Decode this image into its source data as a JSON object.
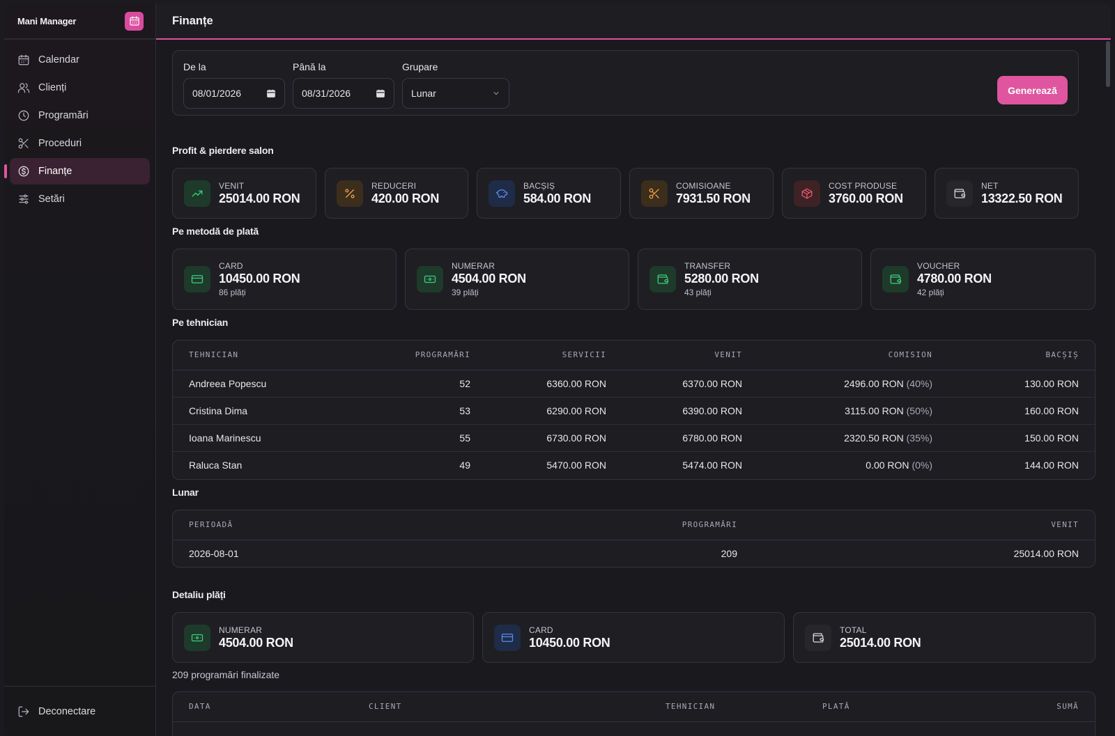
{
  "app": {
    "name": "Mani Manager",
    "page_title": "Finanțe"
  },
  "sidebar": {
    "items": [
      {
        "label": "Calendar",
        "icon": "calendar-icon"
      },
      {
        "label": "Clienți",
        "icon": "users-icon"
      },
      {
        "label": "Programări",
        "icon": "clock-icon"
      },
      {
        "label": "Proceduri",
        "icon": "scissors-icon"
      },
      {
        "label": "Finanțe",
        "icon": "dollar-icon",
        "active": true
      },
      {
        "label": "Setări",
        "icon": "sliders-icon"
      }
    ],
    "logout_label": "Deconectare"
  },
  "filters": {
    "from_label": "De la",
    "from_value": "08/01/2026",
    "to_label": "Până la",
    "to_value": "08/31/2026",
    "group_label": "Grupare",
    "group_value": "Lunar",
    "generate_label": "Generează"
  },
  "pnl": {
    "title": "Profit & pierdere salon",
    "cards": [
      {
        "label": "VENIT",
        "value": "25014.00 RON",
        "icon": "trending-up-icon",
        "color": "green"
      },
      {
        "label": "REDUCERI",
        "value": "420.00 RON",
        "icon": "percent-icon",
        "color": "orange"
      },
      {
        "label": "BACȘIȘ",
        "value": "584.00 RON",
        "icon": "piggy-bank-icon",
        "color": "blue"
      },
      {
        "label": "COMISIOANE",
        "value": "7931.50 RON",
        "icon": "scissors-icon",
        "color": "orange"
      },
      {
        "label": "COST PRODUSE",
        "value": "3760.00 RON",
        "icon": "package-icon",
        "color": "red"
      },
      {
        "label": "NET",
        "value": "13322.50 RON",
        "icon": "wallet-icon",
        "color": "gray"
      }
    ]
  },
  "payment_methods": {
    "title": "Pe metodă de plată",
    "cards": [
      {
        "label": "CARD",
        "value": "10450.00 RON",
        "sub": "86 plăți",
        "icon": "credit-card-icon"
      },
      {
        "label": "NUMERAR",
        "value": "4504.00 RON",
        "sub": "39 plăți",
        "icon": "banknote-icon"
      },
      {
        "label": "TRANSFER",
        "value": "5280.00 RON",
        "sub": "43 plăți",
        "icon": "wallet-icon"
      },
      {
        "label": "VOUCHER",
        "value": "4780.00 RON",
        "sub": "42 plăți",
        "icon": "wallet-icon"
      }
    ]
  },
  "technicians": {
    "title": "Pe tehnician",
    "headers": [
      "TEHNICIAN",
      "PROGRAMĂRI",
      "SERVICII",
      "VENIT",
      "COMISION",
      "BACȘIȘ"
    ],
    "rows": [
      {
        "name": "Andreea Popescu",
        "appointments": "52",
        "services": "6360.00 RON",
        "revenue": "6370.00 RON",
        "commission": "2496.00 RON",
        "commission_pct": "(40%)",
        "tips": "130.00 RON"
      },
      {
        "name": "Cristina Dima",
        "appointments": "53",
        "services": "6290.00 RON",
        "revenue": "6390.00 RON",
        "commission": "3115.00 RON",
        "commission_pct": "(50%)",
        "tips": "160.00 RON"
      },
      {
        "name": "Ioana Marinescu",
        "appointments": "55",
        "services": "6730.00 RON",
        "revenue": "6780.00 RON",
        "commission": "2320.50 RON",
        "commission_pct": "(35%)",
        "tips": "150.00 RON"
      },
      {
        "name": "Raluca Stan",
        "appointments": "49",
        "services": "5470.00 RON",
        "revenue": "5474.00 RON",
        "commission": "0.00 RON",
        "commission_pct": "(0%)",
        "tips": "144.00 RON"
      }
    ]
  },
  "monthly": {
    "title": "Lunar",
    "headers": [
      "PERIOADĂ",
      "PROGRAMĂRI",
      "VENIT"
    ],
    "rows": [
      {
        "period": "2026-08-01",
        "appointments": "209",
        "revenue": "25014.00 RON"
      }
    ]
  },
  "payment_detail": {
    "title": "Detaliu plăți",
    "cards": [
      {
        "label": "NUMERAR",
        "value": "4504.00 RON",
        "icon": "banknote-icon",
        "color": "green"
      },
      {
        "label": "CARD",
        "value": "10450.00 RON",
        "icon": "credit-card-icon",
        "color": "blue"
      },
      {
        "label": "TOTAL",
        "value": "25014.00 RON",
        "icon": "wallet-icon",
        "color": "gray"
      }
    ],
    "count_text": "209 programări finalizate",
    "headers": [
      "DATA",
      "CLIENT",
      "TEHNICIAN",
      "PLATĂ",
      "SUMĂ"
    ]
  }
}
